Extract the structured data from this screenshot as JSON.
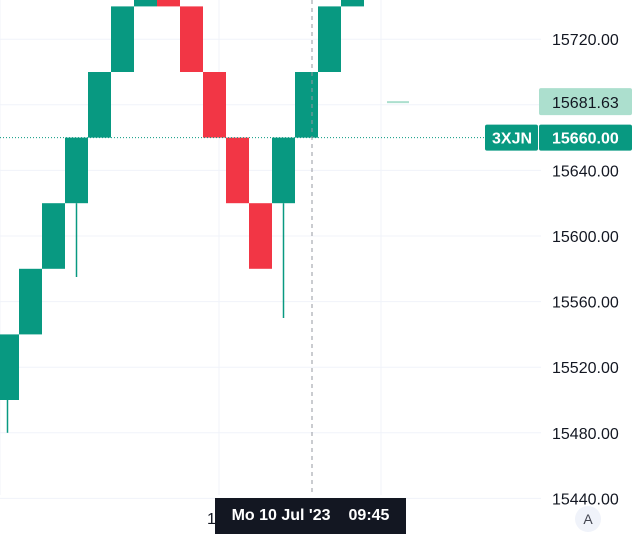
{
  "chart_data": {
    "type": "renko",
    "box_size": 40,
    "ylim": [
      15440,
      15740
    ],
    "y_ticks": [
      "15440.00",
      "15480.00",
      "15520.00",
      "15560.00",
      "15600.00",
      "15640.00",
      "15680.00",
      "15720.00"
    ],
    "y_ticks_labeled": [
      "15720.00",
      "15640.00",
      "15600.00",
      "15560.00",
      "15520.00",
      "15480.00",
      "15440.00"
    ],
    "bricks": [
      {
        "open": 15500,
        "close": 15540,
        "direction": "up",
        "wick_low": 15480
      },
      {
        "open": 15540,
        "close": 15580,
        "direction": "up"
      },
      {
        "open": 15580,
        "close": 15620,
        "direction": "up"
      },
      {
        "open": 15620,
        "close": 15660,
        "direction": "up",
        "wick_low": 15575
      },
      {
        "open": 15660,
        "close": 15700,
        "direction": "up"
      },
      {
        "open": 15700,
        "close": 15740,
        "direction": "up"
      },
      {
        "open": 15740,
        "close": 15780,
        "direction": "up"
      },
      {
        "open": 15780,
        "close": 15740,
        "direction": "down",
        "wick_high": 15840
      },
      {
        "open": 15740,
        "close": 15700,
        "direction": "down"
      },
      {
        "open": 15700,
        "close": 15660,
        "direction": "down"
      },
      {
        "open": 15660,
        "close": 15620,
        "direction": "down"
      },
      {
        "open": 15620,
        "close": 15580,
        "direction": "down"
      },
      {
        "open": 15620,
        "close": 15660,
        "direction": "up",
        "wick_low": 15550
      },
      {
        "open": 15660,
        "close": 15700,
        "direction": "up"
      },
      {
        "open": 15700,
        "close": 15740,
        "direction": "up"
      },
      {
        "open": 15740,
        "close": 15780,
        "direction": "up"
      },
      {
        "open": 15780,
        "close": 15820,
        "direction": "up",
        "projected": true
      }
    ],
    "last_price": {
      "value": "15660.00",
      "symbol": "3XJN"
    },
    "projected_price": "15681.63",
    "crosshair": {
      "date": "Mo 10 Jul '23",
      "time": "09:45",
      "partial_tick": "1"
    },
    "grid": true,
    "colors": {
      "up": "#089981",
      "down": "#f23645",
      "projected": "#acdfce",
      "background": "#ffffff",
      "grid": "#f0f3fa",
      "text": "#131722"
    }
  },
  "controls": {
    "auto_scale_label": "A"
  }
}
